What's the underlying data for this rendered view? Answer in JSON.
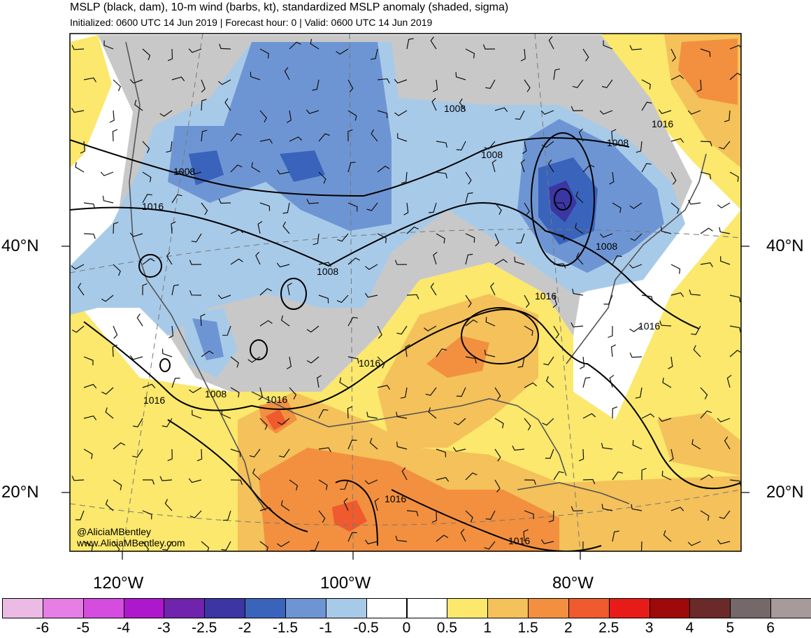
{
  "header": {
    "title": "MSLP (black, dam), 10-m wind (barbs, kt), standardized MSLP anomaly (shaded, sigma)",
    "subtitle": "Initialized: 0600 UTC 14 Jun 2019 | Forecast hour: 0 | Valid: 0600 UTC 14 Jun 2019"
  },
  "axes": {
    "lat_labels": [
      "40°N",
      "20°N"
    ],
    "lon_labels": [
      "120°W",
      "100°W",
      "80°W"
    ]
  },
  "isobar_labels": [
    "1008",
    "1008",
    "1008",
    "1008",
    "1008",
    "1008",
    "1008",
    "1016",
    "1016",
    "1016",
    "1016",
    "1016",
    "1016",
    "1016",
    "1016",
    "1016"
  ],
  "credits": {
    "handle": "@AliciaMBentley",
    "site": "www.AliciaMBentley.com"
  },
  "colorbar": {
    "colors": [
      "#ebbbe6",
      "#e67ee6",
      "#d44ddf",
      "#ad18cc",
      "#7024ad",
      "#3b36a3",
      "#3a64bb",
      "#6e95d3",
      "#a8cae9",
      "#ffffff",
      "#ffffff",
      "#fbe86c",
      "#f4c15a",
      "#f2903f",
      "#ef5a2e",
      "#e71c18",
      "#9e0a0a",
      "#6b2a2a",
      "#746868",
      "#a69a9a"
    ],
    "labels": [
      "-6",
      "-5",
      "-4",
      "-3",
      "-2.5",
      "-2",
      "-1.5",
      "-1",
      "-0.5",
      "0",
      "0.5",
      "1",
      "1.5",
      "2",
      "2.5",
      "3",
      "4",
      "5",
      "6"
    ]
  },
  "style": {
    "land_neutral": "#c8c8c8",
    "ocean": "#ffffff",
    "isobar": "#000000"
  }
}
